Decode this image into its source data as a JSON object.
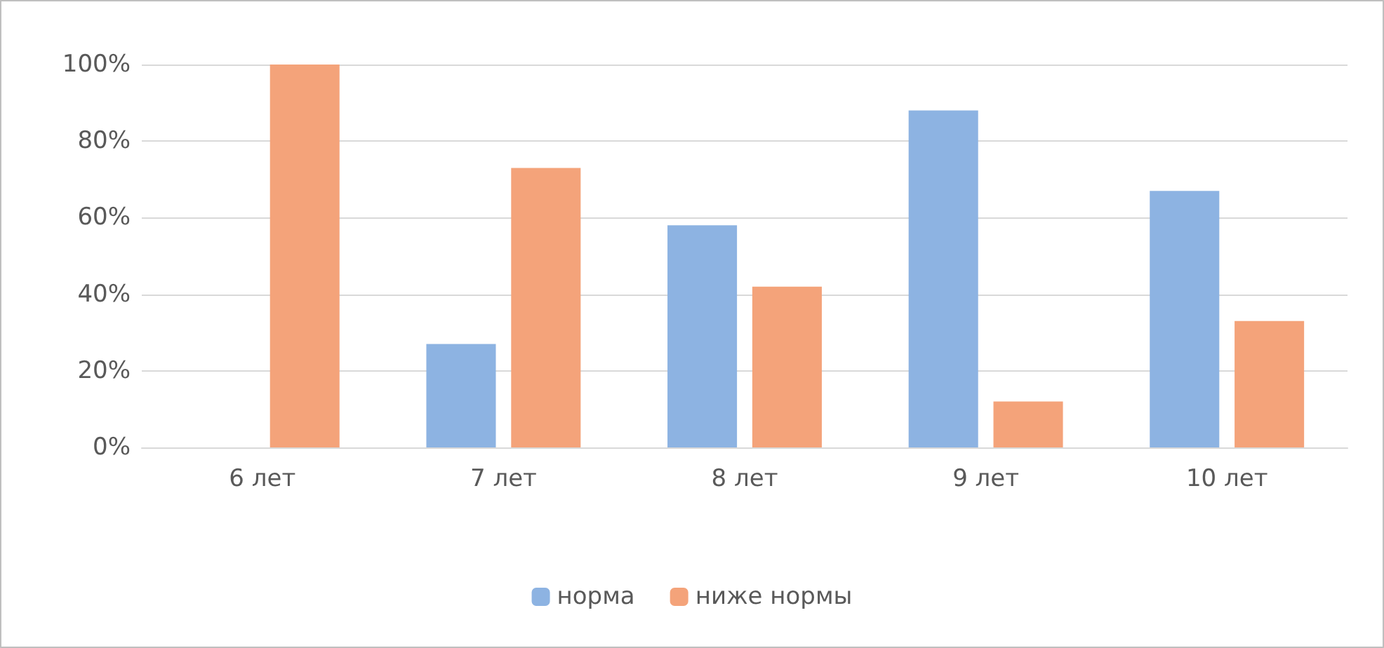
{
  "chart_data": {
    "type": "bar",
    "categories": [
      "6 лет",
      "7 лет",
      "8 лет",
      "9 лет",
      "10 лет"
    ],
    "series": [
      {
        "name": "норма",
        "color": "#8db3e2",
        "values": [
          0,
          27,
          58,
          88,
          67
        ]
      },
      {
        "name": "ниже нормы",
        "color": "#f4a37a",
        "values": [
          100,
          73,
          42,
          12,
          33
        ]
      }
    ],
    "ylim": [
      0,
      100
    ],
    "yticks": [
      {
        "value": 0,
        "label": "0%"
      },
      {
        "value": 20,
        "label": "20%"
      },
      {
        "value": 40,
        "label": "40%"
      },
      {
        "value": 60,
        "label": "60%"
      },
      {
        "value": 80,
        "label": "80%"
      },
      {
        "value": 100,
        "label": "100%"
      }
    ],
    "grid": "y",
    "legend": "bottom"
  }
}
